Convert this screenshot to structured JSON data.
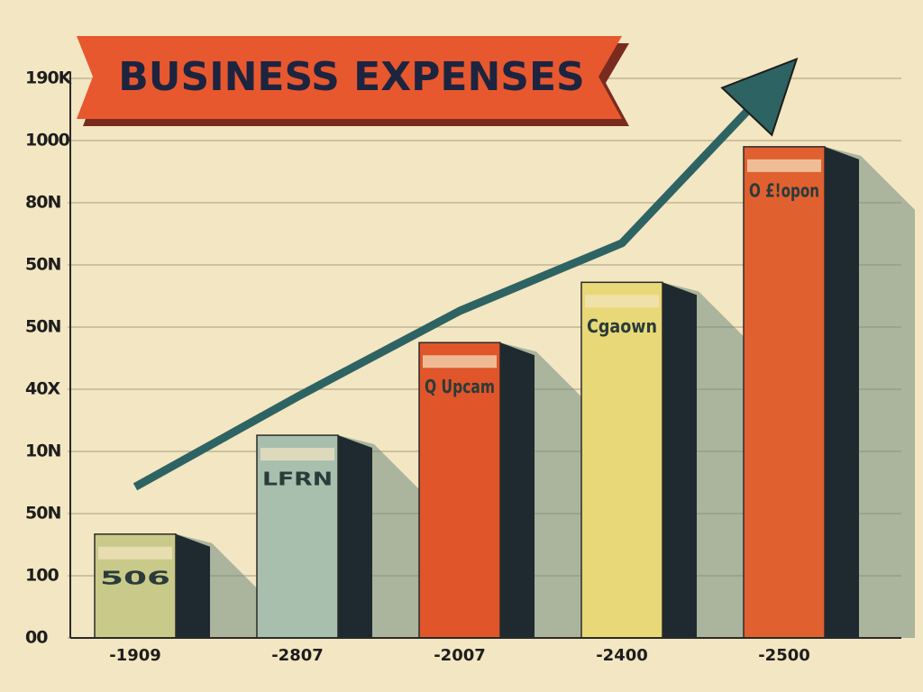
{
  "chart_data": {
    "type": "bar",
    "title": "BUSINESS EXPENSES",
    "categories": [
      "-1909",
      "-2807",
      "-2007",
      "-2400",
      "-2500"
    ],
    "annotations": [
      "506",
      "LFRN",
      "Q Upcam",
      "Cgaown",
      "O £!opon"
    ],
    "ylim": [
      0,
      9
    ],
    "yticks": [
      {
        "value": 0,
        "label": "00"
      },
      {
        "value": 1,
        "label": "100"
      },
      {
        "value": 2,
        "label": "50N"
      },
      {
        "value": 3,
        "label": "10N"
      },
      {
        "value": 4,
        "label": "40X"
      },
      {
        "value": 5,
        "label": "50N"
      },
      {
        "value": 6,
        "label": "50N"
      },
      {
        "value": 7,
        "label": "80N"
      },
      {
        "value": 8,
        "label": "1000"
      },
      {
        "value": 9,
        "label": "190K"
      }
    ],
    "grid": true,
    "series": [
      {
        "type": "bar",
        "colors": [
          "#c9c98a",
          "#a9bfae",
          "#e0552a",
          "#e8d877",
          "#e06030"
        ],
        "values": [
          1.67,
          3.26,
          4.75,
          5.72,
          7.9
        ]
      },
      {
        "type": "line",
        "color": "#2e6363",
        "values": [
          2.43,
          3.88,
          5.26,
          6.35,
          9.1
        ]
      }
    ]
  }
}
